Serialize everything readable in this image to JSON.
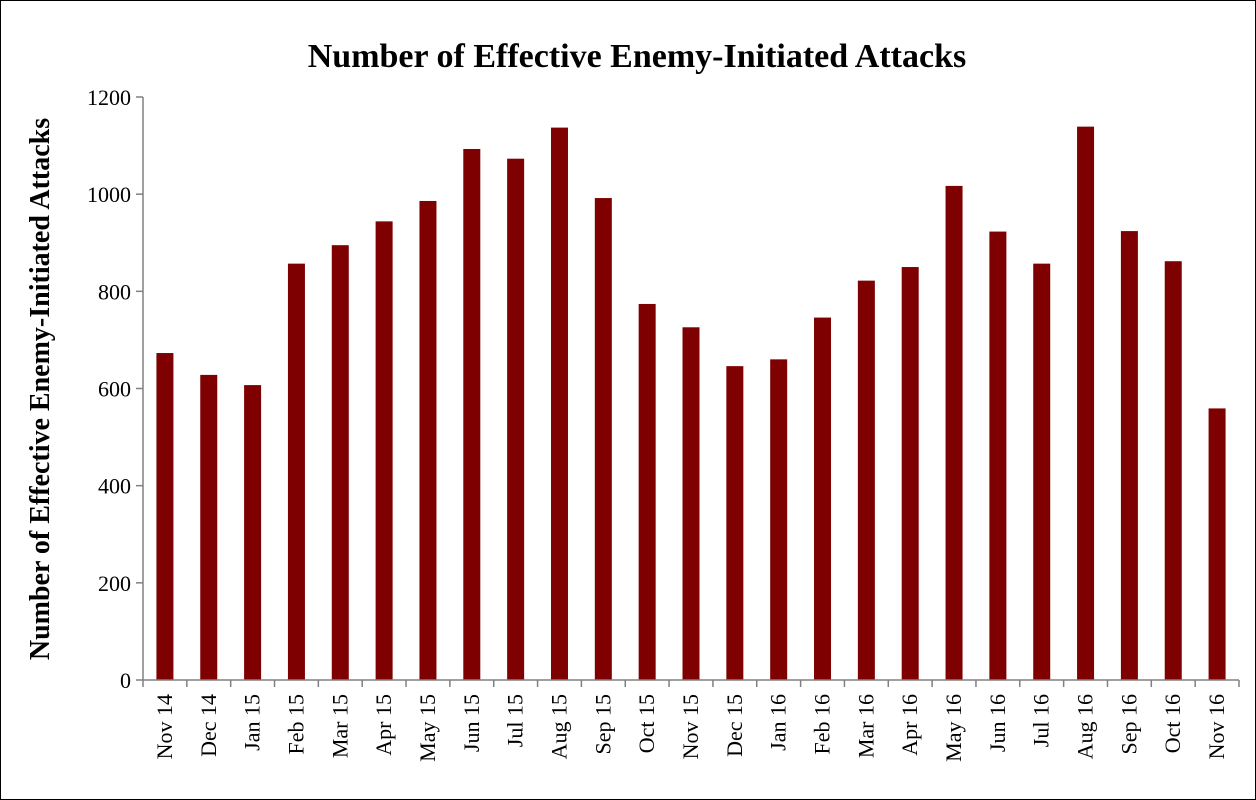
{
  "colors": {
    "bar": "#7f0000",
    "axis": "#808080",
    "text": "#000000",
    "background": "#ffffff"
  },
  "chart_data": {
    "type": "bar",
    "title": "Number of Effective Enemy-Initiated Attacks",
    "xlabel": "",
    "ylabel": "Number of Effective Enemy-Initiated Attacks",
    "ylim": [
      0,
      1200
    ],
    "yticks": [
      0,
      200,
      400,
      600,
      800,
      1000,
      1200
    ],
    "ytick_labels": [
      "0",
      "200",
      "400",
      "600",
      "800",
      "1000",
      "1200"
    ],
    "grid": false,
    "legend": "none",
    "categories": [
      "Nov 14",
      "Dec 14",
      "Jan 15",
      "Feb 15",
      "Mar 15",
      "Apr 15",
      "May 15",
      "Jun 15",
      "Jul 15",
      "Aug 15",
      "Sep 15",
      "Oct 15",
      "Nov 15",
      "Dec 15",
      "Jan 16",
      "Feb 16",
      "Mar 16",
      "Apr 16",
      "May 16",
      "Jun 16",
      "Jul 16",
      "Aug 16",
      "Sep 16",
      "Oct 16",
      "Nov 16"
    ],
    "values": [
      673,
      628,
      607,
      857,
      895,
      944,
      986,
      1093,
      1073,
      1137,
      992,
      774,
      726,
      646,
      660,
      746,
      822,
      850,
      1017,
      923,
      857,
      1139,
      924,
      862,
      559
    ]
  }
}
